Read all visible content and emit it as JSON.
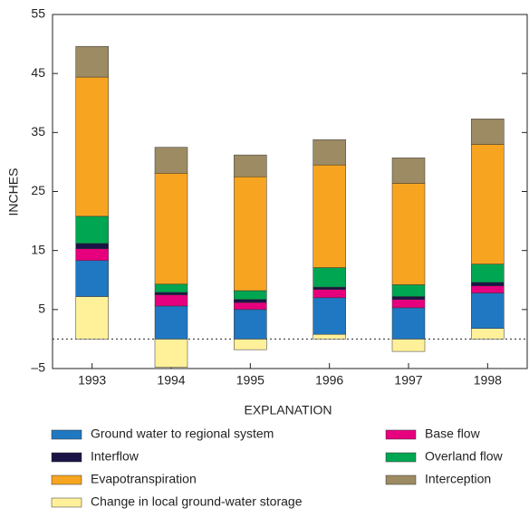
{
  "chart_data": {
    "type": "stacked_bar",
    "y_label": "INCHES",
    "legend_title": "EXPLANATION",
    "categories": [
      "1993",
      "1994",
      "1995",
      "1996",
      "1997",
      "1998"
    ],
    "series": [
      {
        "name": "Change in local ground-water storage",
        "color": "#fff09a",
        "values": [
          7.2,
          -4.8,
          -1.8,
          0.8,
          -2.1,
          1.8
        ]
      },
      {
        "name": "Ground water to regional system",
        "color": "#1f78c1",
        "values": [
          6.1,
          5.6,
          5.0,
          6.2,
          5.3,
          6.0
        ]
      },
      {
        "name": "Base flow",
        "color": "#e6007e",
        "values": [
          2.0,
          1.9,
          1.2,
          1.4,
          1.4,
          1.2
        ]
      },
      {
        "name": "Interflow",
        "color": "#1a1446",
        "values": [
          0.9,
          0.4,
          0.5,
          0.4,
          0.5,
          0.6
        ]
      },
      {
        "name": "Overland flow",
        "color": "#00a651",
        "values": [
          4.6,
          1.4,
          1.5,
          3.3,
          2.0,
          3.1
        ]
      },
      {
        "name": "Evapotranspiration",
        "color": "#f7a520",
        "values": [
          23.6,
          18.8,
          19.3,
          17.4,
          17.2,
          20.3
        ]
      },
      {
        "name": "Interception",
        "color": "#9c8b63",
        "values": [
          5.2,
          4.4,
          3.7,
          4.3,
          4.3,
          4.3
        ]
      }
    ],
    "ylim": [
      -5,
      55
    ],
    "yticks": [
      {
        "value": -5,
        "label": "–5"
      },
      5,
      15,
      25,
      35,
      45,
      55
    ]
  }
}
